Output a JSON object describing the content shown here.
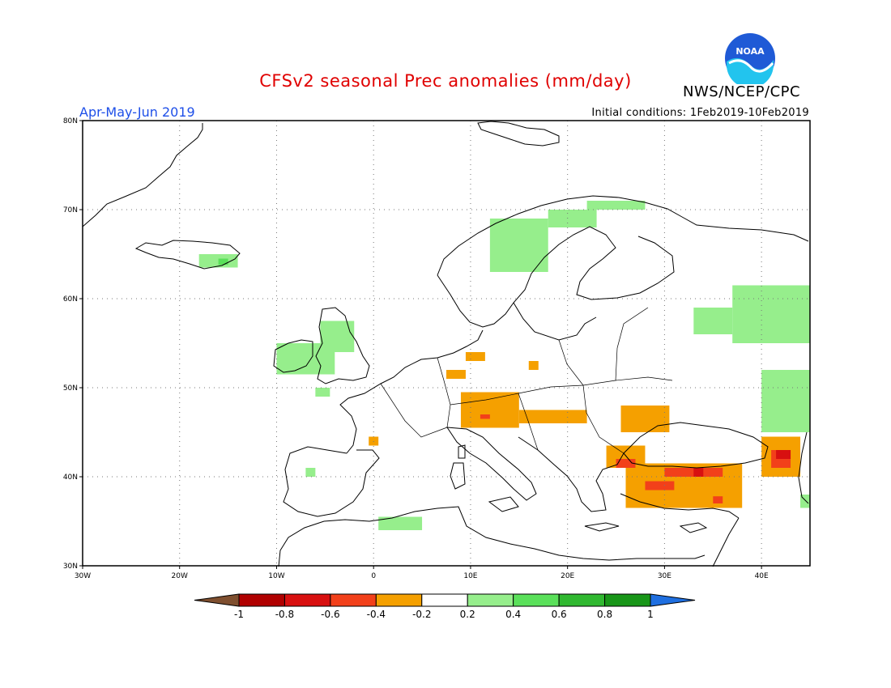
{
  "title": "CFSv2 seasonal Prec anomalies (mm/day)",
  "org": "NWS/NCEP/CPC",
  "logo_text": "NOAA",
  "season": "Apr-May-Jun 2019",
  "initial_conditions": "Initial conditions: 1Feb2019-10Feb2019",
  "lon_ticks": [
    {
      "lon": -30,
      "label": "30W"
    },
    {
      "lon": -20,
      "label": "20W"
    },
    {
      "lon": -10,
      "label": "10W"
    },
    {
      "lon": 0,
      "label": "0"
    },
    {
      "lon": 10,
      "label": "10E"
    },
    {
      "lon": 20,
      "label": "20E"
    },
    {
      "lon": 30,
      "label": "30E"
    },
    {
      "lon": 40,
      "label": "40E"
    }
  ],
  "lat_ticks": [
    {
      "lat": 30,
      "label": "30N"
    },
    {
      "lat": 40,
      "label": "40N"
    },
    {
      "lat": 50,
      "label": "50N"
    },
    {
      "lat": 60,
      "label": "60N"
    },
    {
      "lat": 70,
      "label": "70N"
    },
    {
      "lat": 80,
      "label": "80N"
    }
  ],
  "colorbar": {
    "bins": [
      "#7f4f2f",
      "#b00000",
      "#d81010",
      "#f2401a",
      "#f5a000",
      "#ffffff",
      "#96ee8c",
      "#5ae05a",
      "#30b830",
      "#189618",
      "#1f6fe0"
    ],
    "labels": [
      "-1",
      "-0.8",
      "-0.6",
      "-0.4",
      "-0.2",
      "0.2",
      "0.4",
      "0.6",
      "0.8",
      "1"
    ]
  },
  "map_data": {
    "extent": {
      "lon": [
        -30,
        45
      ],
      "lat": [
        30,
        80
      ]
    },
    "anomaly_cells": [
      {
        "lon": [
          -10,
          -4
        ],
        "lat": [
          51.5,
          55
        ],
        "bin": "0.2",
        "color": "#96ee8c"
      },
      {
        "lon": [
          -5.5,
          -2
        ],
        "lat": [
          54,
          57.5
        ],
        "bin": "0.2",
        "color": "#96ee8c"
      },
      {
        "lon": [
          -6,
          -4.5
        ],
        "lat": [
          49,
          50
        ],
        "bin": "0.2",
        "color": "#96ee8c"
      },
      {
        "lon": [
          -18,
          -14
        ],
        "lat": [
          63.5,
          65
        ],
        "bin": "0.2",
        "color": "#96ee8c"
      },
      {
        "lon": [
          -16,
          -15
        ],
        "lat": [
          63.8,
          64.5
        ],
        "bin": "0.4",
        "color": "#5ae05a"
      },
      {
        "lon": [
          12,
          18
        ],
        "lat": [
          63,
          69
        ],
        "bin": "0.2",
        "color": "#96ee8c"
      },
      {
        "lon": [
          18,
          23
        ],
        "lat": [
          68,
          70
        ],
        "bin": "0.2",
        "color": "#96ee8c"
      },
      {
        "lon": [
          22,
          28
        ],
        "lat": [
          70,
          71
        ],
        "bin": "0.2",
        "color": "#96ee8c"
      },
      {
        "lon": [
          33,
          37
        ],
        "lat": [
          56,
          59
        ],
        "bin": "0.2",
        "color": "#96ee8c"
      },
      {
        "lon": [
          37,
          45
        ],
        "lat": [
          55,
          61.5
        ],
        "bin": "0.2",
        "color": "#96ee8c"
      },
      {
        "lon": [
          40,
          45
        ],
        "lat": [
          45,
          52
        ],
        "bin": "0.2",
        "color": "#96ee8c"
      },
      {
        "lon": [
          0.5,
          5
        ],
        "lat": [
          34,
          35.5
        ],
        "bin": "0.2",
        "color": "#96ee8c"
      },
      {
        "lon": [
          -7,
          -6
        ],
        "lat": [
          40,
          41
        ],
        "bin": "0.2",
        "color": "#96ee8c"
      },
      {
        "lon": [
          44,
          45
        ],
        "lat": [
          36.5,
          38
        ],
        "bin": "0.2",
        "color": "#96ee8c"
      },
      {
        "lon": [
          7.5,
          9.5
        ],
        "lat": [
          51,
          52
        ],
        "bin": "-0.2",
        "color": "#f5a000"
      },
      {
        "lon": [
          9.5,
          11.5
        ],
        "lat": [
          53,
          54
        ],
        "bin": "-0.2",
        "color": "#f5a000"
      },
      {
        "lon": [
          16,
          17
        ],
        "lat": [
          52,
          53
        ],
        "bin": "-0.2",
        "color": "#f5a000"
      },
      {
        "lon": [
          -0.5,
          0.5
        ],
        "lat": [
          43.5,
          44.5
        ],
        "bin": "-0.2",
        "color": "#f5a000"
      },
      {
        "lon": [
          9,
          15
        ],
        "lat": [
          45.5,
          49.5
        ],
        "bin": "-0.2",
        "color": "#f5a000"
      },
      {
        "lon": [
          15,
          22
        ],
        "lat": [
          46,
          47.5
        ],
        "bin": "-0.2",
        "color": "#f5a000"
      },
      {
        "lon": [
          25.5,
          30.5
        ],
        "lat": [
          45,
          48
        ],
        "bin": "-0.2",
        "color": "#f5a000"
      },
      {
        "lon": [
          24,
          28
        ],
        "lat": [
          41,
          43.5
        ],
        "bin": "-0.2",
        "color": "#f5a000"
      },
      {
        "lon": [
          26,
          38
        ],
        "lat": [
          36.5,
          41.5
        ],
        "bin": "-0.2",
        "color": "#f5a000"
      },
      {
        "lon": [
          40,
          44
        ],
        "lat": [
          40,
          44.5
        ],
        "bin": "-0.2",
        "color": "#f5a000"
      },
      {
        "lon": [
          11,
          12
        ],
        "lat": [
          46.5,
          47
        ],
        "bin": "-0.4",
        "color": "#f2401a"
      },
      {
        "lon": [
          25,
          27
        ],
        "lat": [
          41,
          42
        ],
        "bin": "-0.4",
        "color": "#f2401a"
      },
      {
        "lon": [
          30,
          36
        ],
        "lat": [
          40,
          41
        ],
        "bin": "-0.4",
        "color": "#f2401a"
      },
      {
        "lon": [
          28,
          31
        ],
        "lat": [
          38.5,
          39.5
        ],
        "bin": "-0.4",
        "color": "#f2401a"
      },
      {
        "lon": [
          35,
          36
        ],
        "lat": [
          37,
          37.8
        ],
        "bin": "-0.4",
        "color": "#f2401a"
      },
      {
        "lon": [
          41,
          43
        ],
        "lat": [
          41,
          43
        ],
        "bin": "-0.4",
        "color": "#f2401a"
      },
      {
        "lon": [
          33,
          34
        ],
        "lat": [
          40,
          41
        ],
        "bin": "-0.6",
        "color": "#d81010"
      },
      {
        "lon": [
          41.5,
          43
        ],
        "lat": [
          42,
          43
        ],
        "bin": "-0.6",
        "color": "#d81010"
      }
    ]
  }
}
